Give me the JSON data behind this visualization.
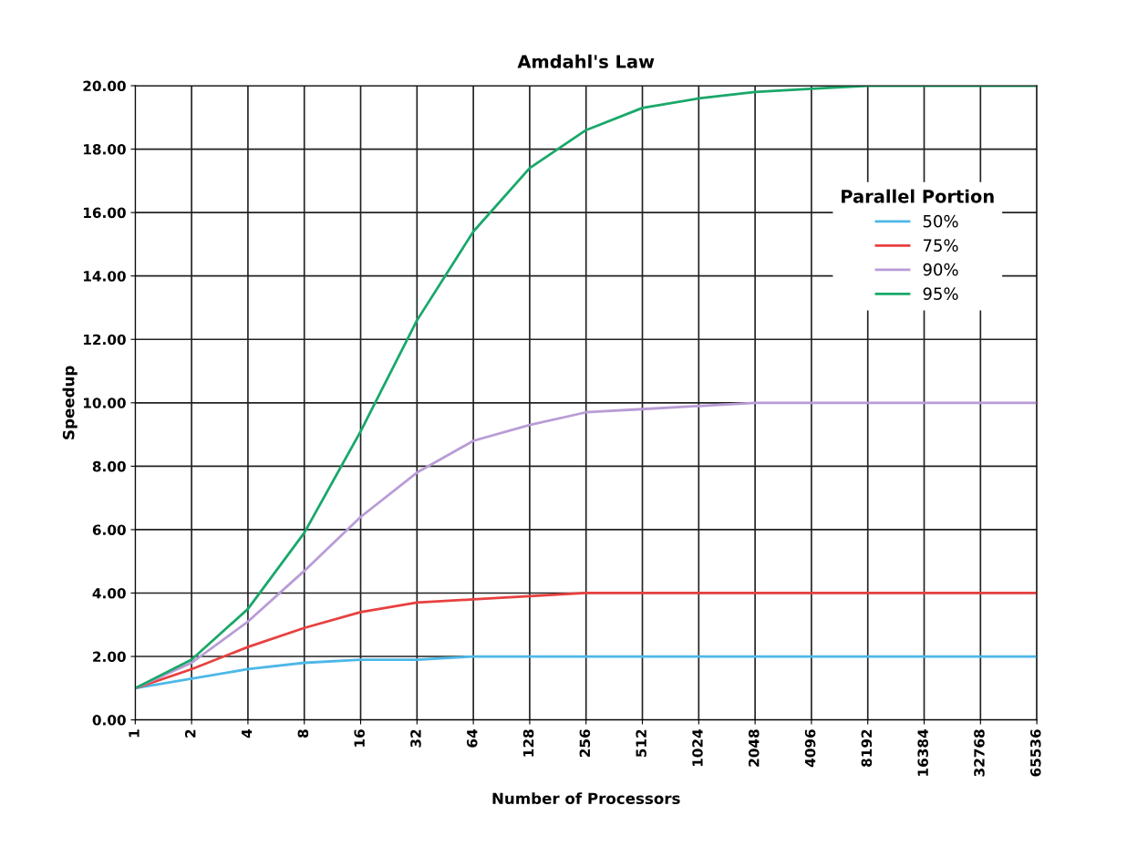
{
  "chart_data": {
    "type": "line",
    "title": "Amdahl's Law",
    "xlabel": "Number of Processors",
    "ylabel": "Speedup",
    "legend_title": "Parallel Portion",
    "x": [
      1,
      2,
      4,
      8,
      16,
      32,
      64,
      128,
      256,
      512,
      1024,
      2048,
      4096,
      8192,
      16384,
      32768,
      65536
    ],
    "series": [
      {
        "name": "50%",
        "color": "#4db8e8",
        "values": [
          1.0,
          1.3,
          1.6,
          1.8,
          1.9,
          1.9,
          2.0,
          2.0,
          2.0,
          2.0,
          2.0,
          2.0,
          2.0,
          2.0,
          2.0,
          2.0,
          2.0
        ]
      },
      {
        "name": "75%",
        "color": "#e84040",
        "values": [
          1.0,
          1.6,
          2.3,
          2.9,
          3.4,
          3.7,
          3.8,
          3.9,
          4.0,
          4.0,
          4.0,
          4.0,
          4.0,
          4.0,
          4.0,
          4.0,
          4.0
        ]
      },
      {
        "name": "90%",
        "color": "#b99cd6",
        "values": [
          1.0,
          1.8,
          3.1,
          4.7,
          6.4,
          7.8,
          8.8,
          9.3,
          9.7,
          9.8,
          9.9,
          10.0,
          10.0,
          10.0,
          10.0,
          10.0,
          10.0
        ]
      },
      {
        "name": "95%",
        "color": "#1aa86a",
        "values": [
          1.0,
          1.9,
          3.5,
          5.9,
          9.1,
          12.6,
          15.4,
          17.4,
          18.6,
          19.3,
          19.6,
          19.8,
          19.9,
          20.0,
          20.0,
          20.0,
          20.0
        ]
      }
    ],
    "log": "x",
    "xlim": [
      1,
      65536
    ],
    "xticks": [
      1,
      2,
      4,
      8,
      16,
      32,
      64,
      128,
      256,
      512,
      1024,
      2048,
      4096,
      8192,
      16384,
      32768,
      65536
    ],
    "ylim": [
      0,
      20
    ],
    "yticks": [
      {
        "value": 0,
        "label": "0.00"
      },
      {
        "value": 2,
        "label": "2.00"
      },
      {
        "value": 4,
        "label": "4.00"
      },
      {
        "value": 6,
        "label": "6.00"
      },
      {
        "value": 8,
        "label": "8.00"
      },
      {
        "value": 10,
        "label": "10.00"
      },
      {
        "value": 12,
        "label": "12.00"
      },
      {
        "value": 14,
        "label": "14.00"
      },
      {
        "value": 16,
        "label": "16.00"
      },
      {
        "value": 18,
        "label": "18.00"
      },
      {
        "value": 20,
        "label": "20.00"
      }
    ],
    "grid": true,
    "legend": "top right",
    "marker": "none",
    "line_style": "solid"
  }
}
